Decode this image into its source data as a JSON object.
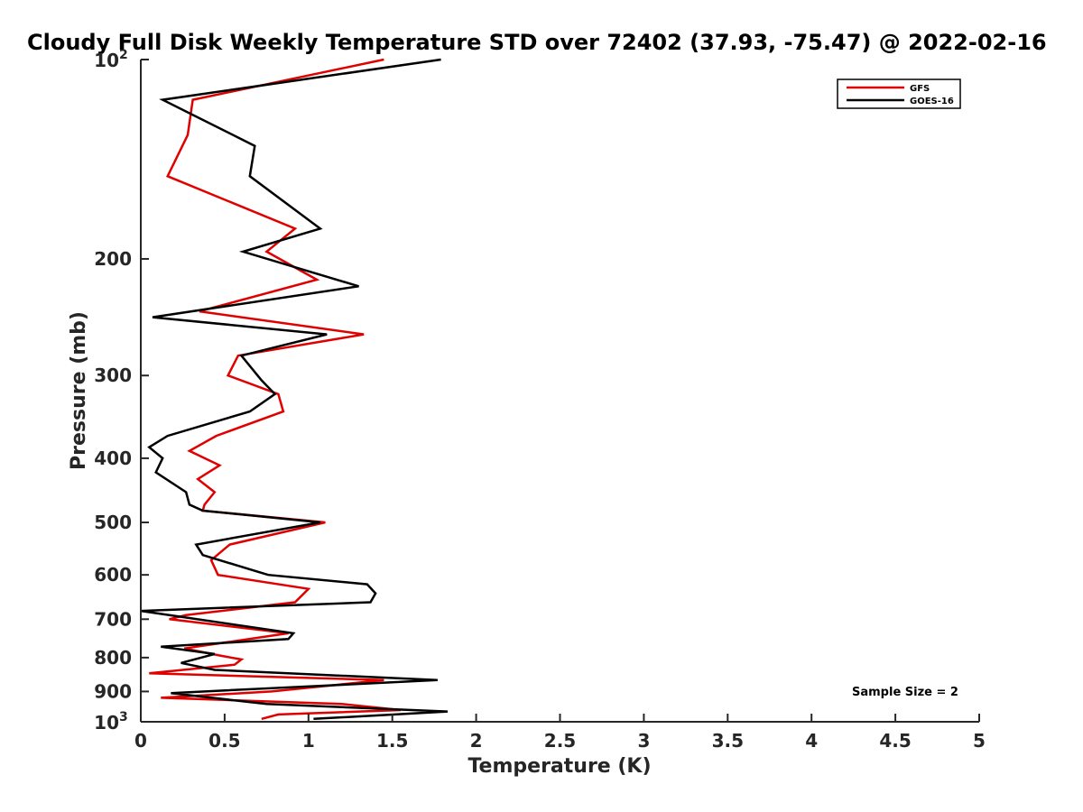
{
  "chart_data": {
    "type": "line",
    "title": "Cloudy Full Disk Weekly Temperature STD over 72402 (37.93, -75.47) @ 2022-02-16",
    "xlabel": "Temperature (K)",
    "ylabel": "Pressure (mb)",
    "xlim": [
      0,
      5
    ],
    "ylim": [
      100,
      1000
    ],
    "y_scale": "log",
    "y_reversed": true,
    "grid": false,
    "x_ticks": [
      {
        "value": 0,
        "label": "0"
      },
      {
        "value": 0.5,
        "label": "0.5"
      },
      {
        "value": 1,
        "label": "1"
      },
      {
        "value": 1.5,
        "label": "1.5"
      },
      {
        "value": 2,
        "label": "2"
      },
      {
        "value": 2.5,
        "label": "2.5"
      },
      {
        "value": 3,
        "label": "3"
      },
      {
        "value": 3.5,
        "label": "3.5"
      },
      {
        "value": 4,
        "label": "4"
      },
      {
        "value": 4.5,
        "label": "4.5"
      },
      {
        "value": 5,
        "label": "5"
      }
    ],
    "y_ticks": [
      {
        "value": 100,
        "label": "10",
        "sup": "2"
      },
      {
        "value": 200,
        "label": "200"
      },
      {
        "value": 300,
        "label": "300"
      },
      {
        "value": 400,
        "label": "400"
      },
      {
        "value": 500,
        "label": "500"
      },
      {
        "value": 600,
        "label": "600"
      },
      {
        "value": 700,
        "label": "700"
      },
      {
        "value": 800,
        "label": "800"
      },
      {
        "value": 900,
        "label": "900"
      },
      {
        "value": 1000,
        "label": "10",
        "sup": "3"
      }
    ],
    "legend_position": "top-right",
    "annotation": "Sample Size = 2",
    "series": [
      {
        "name": "GFS",
        "color": "#e00000",
        "points": [
          [
            1.45,
            100
          ],
          [
            0.31,
            115
          ],
          [
            0.28,
            130
          ],
          [
            0.16,
            150
          ],
          [
            0.92,
            180
          ],
          [
            0.75,
            195
          ],
          [
            1.05,
            215
          ],
          [
            0.35,
            240
          ],
          [
            1.33,
            260
          ],
          [
            0.58,
            280
          ],
          [
            0.52,
            300
          ],
          [
            0.82,
            320
          ],
          [
            0.85,
            340
          ],
          [
            0.45,
            370
          ],
          [
            0.29,
            390
          ],
          [
            0.47,
            410
          ],
          [
            0.34,
            430
          ],
          [
            0.44,
            450
          ],
          [
            0.38,
            470
          ],
          [
            0.37,
            480
          ],
          [
            1.1,
            500
          ],
          [
            0.53,
            540
          ],
          [
            0.42,
            570
          ],
          [
            0.46,
            600
          ],
          [
            1.0,
            630
          ],
          [
            0.92,
            660
          ],
          [
            0.27,
            690
          ],
          [
            0.17,
            700
          ],
          [
            0.88,
            735
          ],
          [
            0.26,
            775
          ],
          [
            0.48,
            795
          ],
          [
            0.6,
            805
          ],
          [
            0.56,
            820
          ],
          [
            0.05,
            845
          ],
          [
            1.45,
            865
          ],
          [
            0.78,
            900
          ],
          [
            0.12,
            920
          ],
          [
            1.2,
            940
          ],
          [
            1.55,
            960
          ],
          [
            0.82,
            975
          ],
          [
            0.72,
            990
          ]
        ]
      },
      {
        "name": "GOES-16",
        "color": "#000000",
        "points": [
          [
            1.79,
            100
          ],
          [
            0.13,
            115
          ],
          [
            0.68,
            135
          ],
          [
            0.65,
            150
          ],
          [
            1.07,
            180
          ],
          [
            0.61,
            195
          ],
          [
            1.3,
            220
          ],
          [
            0.07,
            245
          ],
          [
            1.11,
            260
          ],
          [
            0.6,
            280
          ],
          [
            0.72,
            305
          ],
          [
            0.8,
            320
          ],
          [
            0.65,
            340
          ],
          [
            0.16,
            370
          ],
          [
            0.05,
            385
          ],
          [
            0.13,
            400
          ],
          [
            0.09,
            420
          ],
          [
            0.27,
            450
          ],
          [
            0.29,
            470
          ],
          [
            0.37,
            480
          ],
          [
            1.07,
            500
          ],
          [
            0.33,
            540
          ],
          [
            0.37,
            560
          ],
          [
            0.76,
            600
          ],
          [
            1.35,
            620
          ],
          [
            1.4,
            640
          ],
          [
            1.37,
            660
          ],
          [
            0.0,
            680
          ],
          [
            0.91,
            735
          ],
          [
            0.88,
            750
          ],
          [
            0.12,
            770
          ],
          [
            0.44,
            790
          ],
          [
            0.24,
            815
          ],
          [
            0.44,
            835
          ],
          [
            1.77,
            865
          ],
          [
            0.18,
            905
          ],
          [
            0.75,
            940
          ],
          [
            1.83,
            965
          ],
          [
            1.03,
            990
          ]
        ]
      }
    ]
  }
}
